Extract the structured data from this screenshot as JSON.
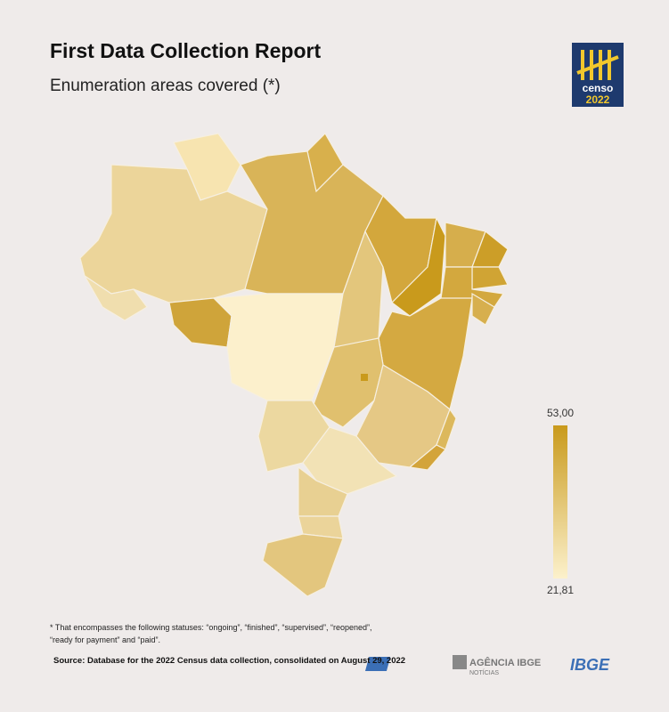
{
  "header": {
    "title": "First Data Collection Report",
    "subtitle": "Enumeration areas covered (*)"
  },
  "logo": {
    "line1": "censo",
    "line2": "2022"
  },
  "legend": {
    "max": {
      "value": 53,
      "label": "53,00"
    },
    "min": {
      "value": 21.81,
      "label": "21,81"
    },
    "color_high": "#c99a1c",
    "color_low": "#fcf1cc"
  },
  "footnote": "* That encompasses the following statuses: “ongoing”, “finished”, “supervised”, “reopened”, “ready for payment” and “paid”.",
  "source": "Source: Database for the 2022 Census data collection, consolidated on August 29, 2022",
  "footer": {
    "agency": "AGÊNCIA IBGE",
    "agency_sub": "NOTÍCIAS",
    "brand": "IBGE"
  }
}
